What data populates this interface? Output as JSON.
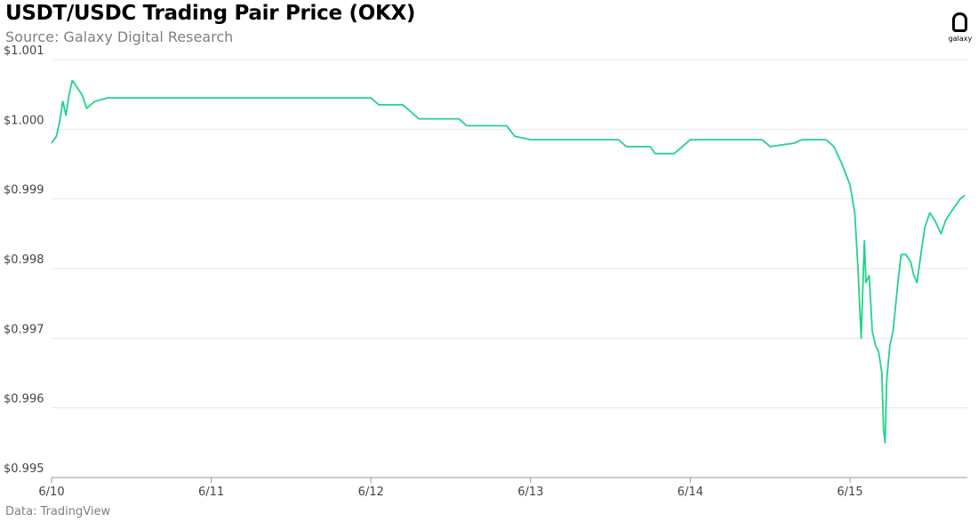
{
  "header": {
    "title": "USDT/USDC Trading Pair Price (OKX)",
    "subtitle": "Source: Galaxy Digital Research"
  },
  "footer": {
    "note": "Data: TradingView"
  },
  "logo": {
    "text": "galaxy",
    "icon": "galaxy-logo-icon"
  },
  "colors": {
    "line": "#22d38a",
    "grid": "#e8e8e8",
    "axis": "#9a9a9a",
    "tick_text": "#444444"
  },
  "chart_data": {
    "type": "line",
    "title": "USDT/USDC Trading Pair Price (OKX)",
    "xlabel": "",
    "ylabel": "",
    "x_ticks": [
      "6/10",
      "6/11",
      "6/12",
      "6/13",
      "6/14",
      "6/15"
    ],
    "y_ticks": [
      "$0.995",
      "$0.996",
      "$0.997",
      "$0.998",
      "$0.999",
      "$1.000",
      "$1.001"
    ],
    "xlim_days": [
      0,
      5.72
    ],
    "ylim": [
      0.995,
      1.001
    ],
    "grid": "horizontal",
    "series": [
      {
        "color": "#22d38a",
        "points": [
          [
            0.0,
            0.9998
          ],
          [
            0.03,
            0.9999
          ],
          [
            0.05,
            1.0001
          ],
          [
            0.07,
            1.0004
          ],
          [
            0.09,
            1.0002
          ],
          [
            0.11,
            1.0005
          ],
          [
            0.13,
            1.0007
          ],
          [
            0.16,
            1.0006
          ],
          [
            0.19,
            1.0005
          ],
          [
            0.22,
            1.0003
          ],
          [
            0.27,
            1.0004
          ],
          [
            0.35,
            1.00045
          ],
          [
            0.6,
            1.00045
          ],
          [
            1.0,
            1.00045
          ],
          [
            1.5,
            1.00045
          ],
          [
            2.0,
            1.00045
          ],
          [
            2.05,
            1.00035
          ],
          [
            2.2,
            1.00035
          ],
          [
            2.25,
            1.00025
          ],
          [
            2.3,
            1.00015
          ],
          [
            2.55,
            1.00015
          ],
          [
            2.6,
            1.00005
          ],
          [
            2.85,
            1.00005
          ],
          [
            2.9,
            0.9999
          ],
          [
            3.0,
            0.99985
          ],
          [
            3.3,
            0.99985
          ],
          [
            3.55,
            0.99985
          ],
          [
            3.6,
            0.99975
          ],
          [
            3.75,
            0.99975
          ],
          [
            3.78,
            0.99965
          ],
          [
            3.9,
            0.99965
          ],
          [
            3.95,
            0.99975
          ],
          [
            4.0,
            0.99985
          ],
          [
            4.3,
            0.99985
          ],
          [
            4.45,
            0.99985
          ],
          [
            4.5,
            0.99975
          ],
          [
            4.65,
            0.9998
          ],
          [
            4.7,
            0.99985
          ],
          [
            4.85,
            0.99985
          ],
          [
            4.9,
            0.99975
          ],
          [
            4.95,
            0.9995
          ],
          [
            5.0,
            0.9992
          ],
          [
            5.03,
            0.9988
          ],
          [
            5.05,
            0.998
          ],
          [
            5.07,
            0.997
          ],
          [
            5.09,
            0.9984
          ],
          [
            5.1,
            0.9978
          ],
          [
            5.12,
            0.9979
          ],
          [
            5.14,
            0.9971
          ],
          [
            5.16,
            0.9969
          ],
          [
            5.18,
            0.9968
          ],
          [
            5.2,
            0.9965
          ],
          [
            5.21,
            0.9957
          ],
          [
            5.22,
            0.9955
          ],
          [
            5.23,
            0.9964
          ],
          [
            5.25,
            0.9969
          ],
          [
            5.27,
            0.9971
          ],
          [
            5.3,
            0.9978
          ],
          [
            5.32,
            0.9982
          ],
          [
            5.35,
            0.9982
          ],
          [
            5.38,
            0.9981
          ],
          [
            5.4,
            0.9979
          ],
          [
            5.42,
            0.9978
          ],
          [
            5.45,
            0.9983
          ],
          [
            5.47,
            0.9986
          ],
          [
            5.5,
            0.9988
          ],
          [
            5.53,
            0.9987
          ],
          [
            5.55,
            0.9986
          ],
          [
            5.57,
            0.9985
          ],
          [
            5.6,
            0.9987
          ],
          [
            5.63,
            0.9988
          ],
          [
            5.66,
            0.9989
          ],
          [
            5.69,
            0.999
          ],
          [
            5.72,
            0.99905
          ]
        ]
      }
    ]
  }
}
